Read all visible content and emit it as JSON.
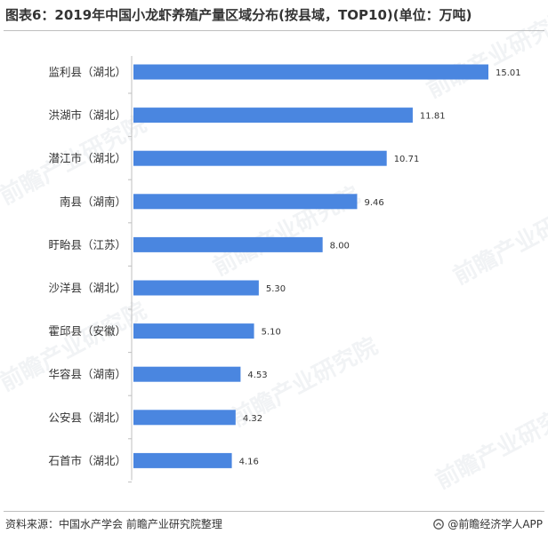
{
  "title": "图表6：2019年中国小龙虾养殖产量区域分布(按县域，TOP10)(单位：万吨)",
  "source": "资料来源：中国水产学会 前瞻产业研究院整理",
  "credit": "@前瞻经济学人APP",
  "watermark_text": "前瞻产业研究院",
  "colors": {
    "bar": "#4a86e0",
    "axis": "#bfbfbf",
    "text": "#333333"
  },
  "chart_data": {
    "type": "bar",
    "orientation": "horizontal",
    "title": "图表6：2019年中国小龙虾养殖产量区域分布(按县域，TOP10)(单位：万吨)",
    "categories": [
      "监利县（湖北）",
      "洪湖市（湖北）",
      "潜江市（湖北）",
      "南县（湖南）",
      "盱眙县（江苏）",
      "沙洋县（湖北）",
      "霍邱县（安徽）",
      "华容县（湖南）",
      "公安县（湖北）",
      "石首市（湖北）"
    ],
    "values": [
      15.01,
      11.81,
      10.71,
      9.46,
      8.0,
      5.3,
      5.1,
      4.53,
      4.32,
      4.16
    ],
    "value_labels": [
      "15.01",
      "11.81",
      "10.71",
      "9.46",
      "8.00",
      "5.30",
      "5.10",
      "4.53",
      "4.32",
      "4.16"
    ],
    "xlim": [
      0,
      15.01
    ],
    "grid": false,
    "legend": "none"
  }
}
